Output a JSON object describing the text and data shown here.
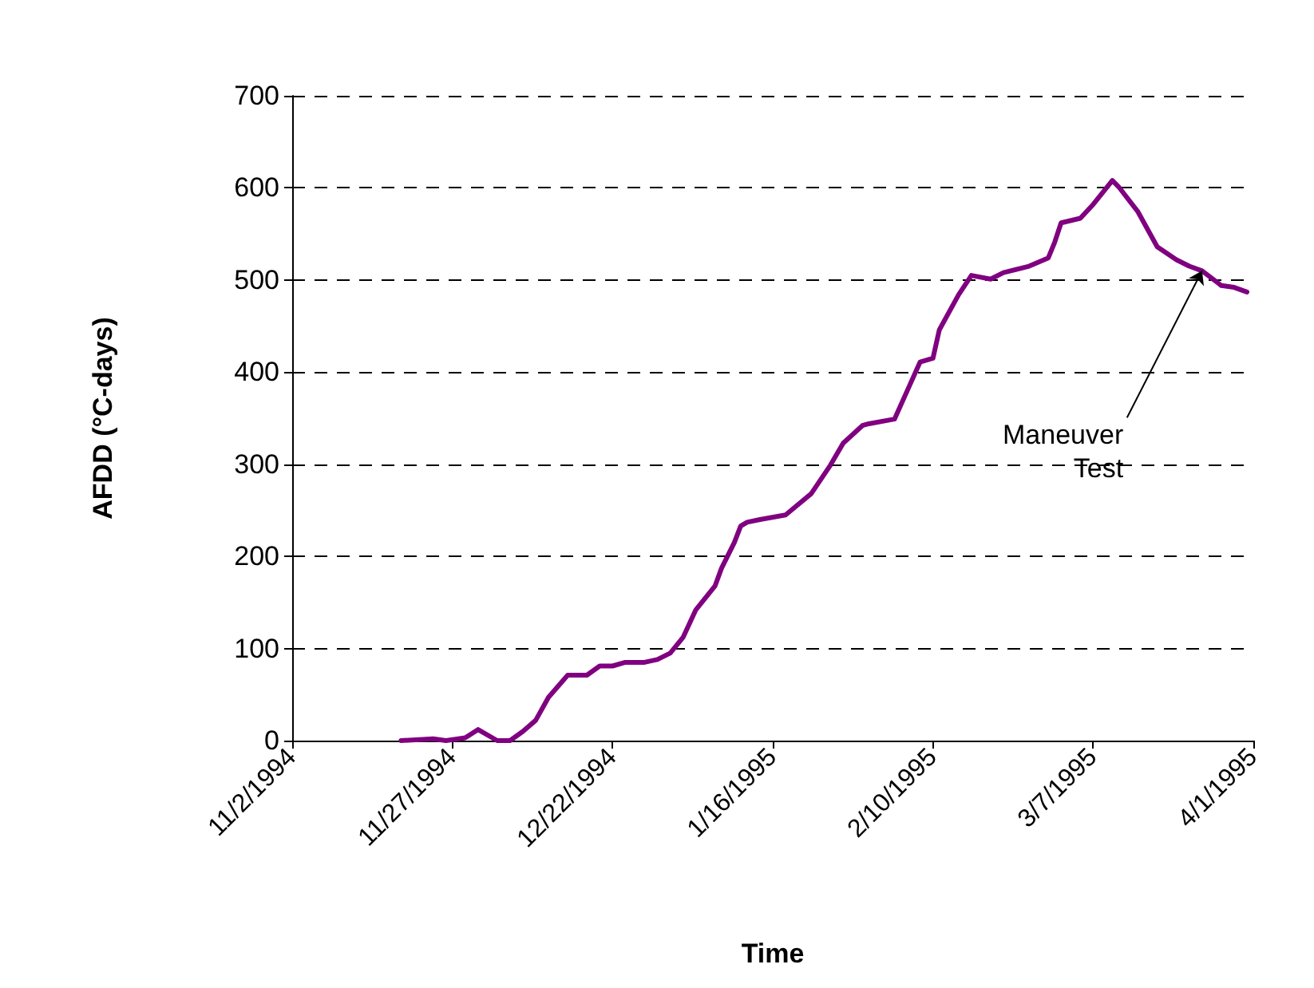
{
  "chart_data": {
    "type": "line",
    "xlabel": "Time",
    "ylabel": "AFDD (°C-days)",
    "x": [
      "1994-11-19",
      "1994-11-24",
      "1994-11-26",
      "1994-11-29",
      "1994-12-01",
      "1994-12-04",
      "1994-12-06",
      "1994-12-08",
      "1994-12-10",
      "1994-12-12",
      "1994-12-15",
      "1994-12-18",
      "1994-12-20",
      "1994-12-22",
      "1994-12-24",
      "1994-12-27",
      "1994-12-29",
      "1994-12-31",
      "1995-01-02",
      "1995-01-04",
      "1995-01-07",
      "1995-01-08",
      "1995-01-10",
      "1995-01-11",
      "1995-01-12",
      "1995-01-14",
      "1995-01-18",
      "1995-01-22",
      "1995-01-25",
      "1995-01-27",
      "1995-01-30",
      "1995-01-31",
      "1995-02-04",
      "1995-02-06",
      "1995-02-08",
      "1995-02-10",
      "1995-02-11",
      "1995-02-14",
      "1995-02-16",
      "1995-02-19",
      "1995-02-21",
      "1995-02-25",
      "1995-02-28",
      "1995-03-01",
      "1995-03-02",
      "1995-03-05",
      "1995-03-07",
      "1995-03-10",
      "1995-03-11",
      "1995-03-14",
      "1995-03-17",
      "1995-03-20",
      "1995-03-22",
      "1995-03-24",
      "1995-03-27",
      "1995-03-29",
      "1995-03-31"
    ],
    "series": [
      {
        "color": "#800080",
        "values": [
          0,
          2,
          0,
          3,
          12,
          0,
          0,
          10,
          22,
          47,
          71,
          71,
          81,
          81,
          85,
          85,
          88,
          95,
          112,
          142,
          168,
          187,
          215,
          233,
          237,
          240,
          245,
          268,
          299,
          323,
          342,
          344,
          349,
          380,
          411,
          415,
          446,
          484,
          505,
          501,
          508,
          515,
          524,
          541,
          562,
          567,
          582,
          608,
          601,
          574,
          536,
          522,
          515,
          510,
          494,
          492,
          487
        ]
      }
    ],
    "xlim": [
      "1994-11-02",
      "1995-04-01"
    ],
    "xticks": [
      {
        "value": "1994-11-02",
        "label": "11/2/1994"
      },
      {
        "value": "1994-11-27",
        "label": "11/27/1994"
      },
      {
        "value": "1994-12-22",
        "label": "12/22/1994"
      },
      {
        "value": "1995-01-16",
        "label": "1/16/1995"
      },
      {
        "value": "1995-02-10",
        "label": "2/10/1995"
      },
      {
        "value": "1995-03-07",
        "label": "3/7/1995"
      },
      {
        "value": "1995-04-01",
        "label": "4/1/1995"
      }
    ],
    "ylim": [
      0,
      700
    ],
    "yticks": [
      0,
      100,
      200,
      300,
      400,
      500,
      600,
      700
    ],
    "grid": "y",
    "marker": "none",
    "line_style": "solid",
    "annotations": [
      {
        "text": "Maneuver\nTest",
        "x": "1995-03-24",
        "y": 510
      }
    ]
  }
}
